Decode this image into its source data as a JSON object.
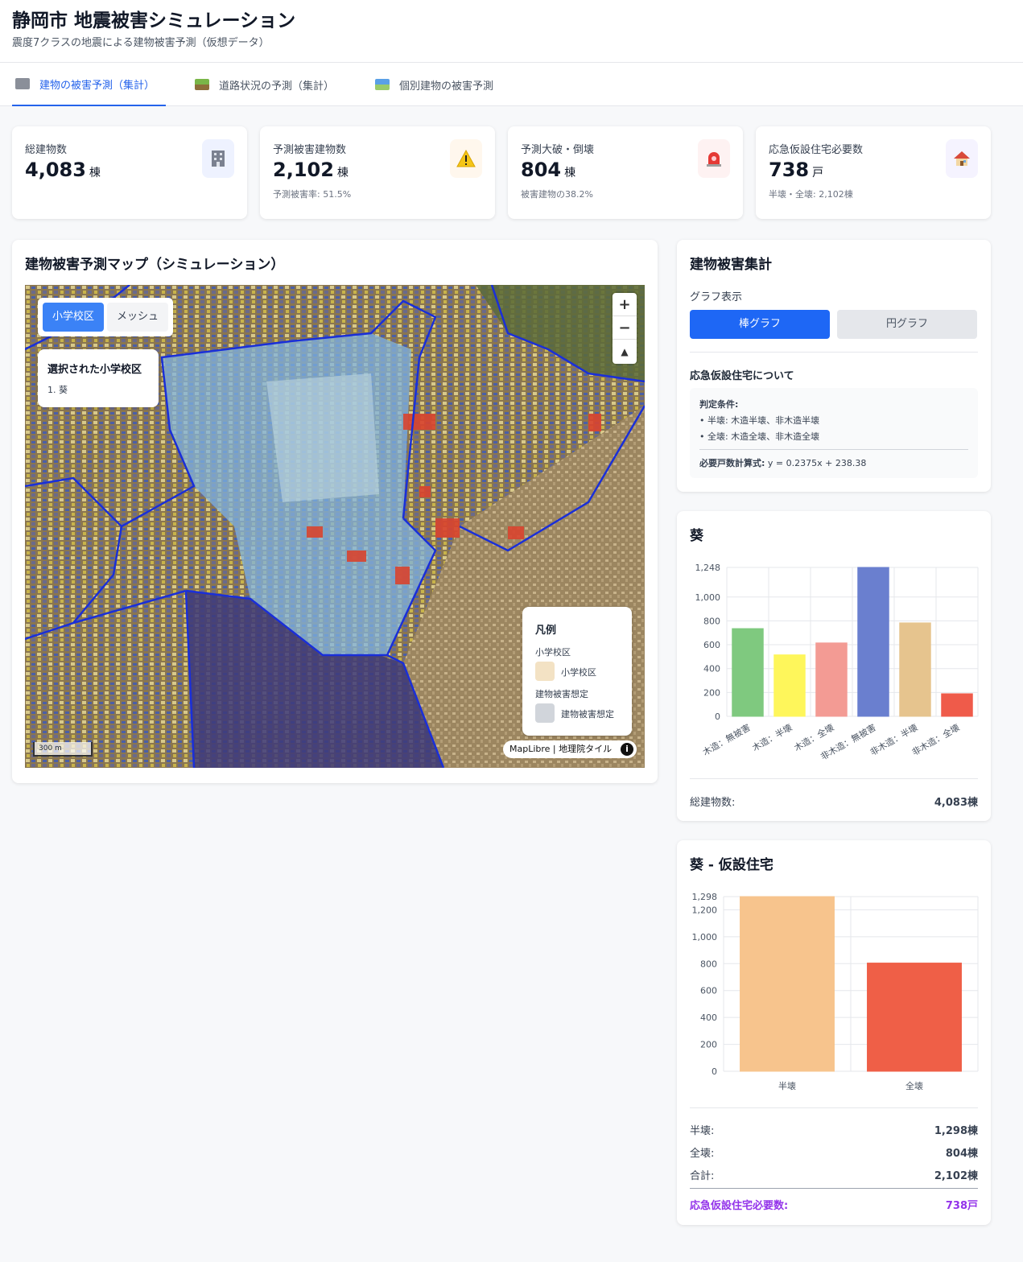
{
  "header": {
    "title": "静岡市 地震被害シミュレーション",
    "subtitle": "震度7クラスの地震による建物被害予測（仮想データ）"
  },
  "tabs": [
    {
      "label": "建物の被害予測（集計）",
      "icon": "building-icon",
      "active": true
    },
    {
      "label": "道路状況の予測（集計）",
      "icon": "road-icon",
      "active": false
    },
    {
      "label": "個別建物の被害予測",
      "icon": "map-icon",
      "active": false
    }
  ],
  "stats": [
    {
      "label": "総建物数",
      "value": "4,083",
      "unit": "棟",
      "sub": "",
      "icon": "building-icon",
      "icon_bg": "#eef2ff"
    },
    {
      "label": "予測被害建物数",
      "value": "2,102",
      "unit": "棟",
      "sub": "予測被害率: 51.5%",
      "icon": "warning-icon",
      "icon_bg": "#fff7ed"
    },
    {
      "label": "予測大破・倒壊",
      "value": "804",
      "unit": "棟",
      "sub": "被害建物の38.2%",
      "icon": "siren-icon",
      "icon_bg": "#fef2f2"
    },
    {
      "label": "応急仮設住宅必要数",
      "value": "738",
      "unit": "戸",
      "sub": "半壊・全壊: 2,102棟",
      "icon": "house-icon",
      "icon_bg": "#f5f3ff"
    }
  ],
  "map_card": {
    "title": "建物被害予測マップ（シミュレーション）",
    "toggle": [
      "小学校区",
      "メッシュ"
    ],
    "selected_title": "選択された小学校区",
    "selected_value": "1. 葵",
    "legend": {
      "title": "凡例",
      "section1": "小学校区",
      "item1": "小学校区",
      "item1_color": "#f3e2c4",
      "section2": "建物被害想定",
      "item2": "建物被害想定",
      "item2_color": "#d1d5db"
    },
    "scale": "300 m",
    "attribution": "MapLibre | 地理院タイル",
    "zoom_in": "+",
    "zoom_out": "−",
    "compass": "▲"
  },
  "summary_card": {
    "title": "建物被害集計",
    "graph_label": "グラフ表示",
    "bar_button": "棒グラフ",
    "pie_button": "円グラフ",
    "about_title": "応急仮設住宅について",
    "criteria_title": "判定条件:",
    "criteria_1": "• 半壊: 木造半壊、非木造半壊",
    "criteria_2": "• 全壊: 木造全壊、非木造全壊",
    "formula_label": "必要戸数計算式:",
    "formula": " y = 0.2375x + 238.38"
  },
  "damage_card": {
    "title": "葵",
    "total_label": "総建物数:",
    "total_value": "4,083棟"
  },
  "housing_card": {
    "title": "葵 - 仮設住宅",
    "rows": [
      {
        "label": "半壊:",
        "value": "1,298棟"
      },
      {
        "label": "全壊:",
        "value": "804棟"
      },
      {
        "label": "合計:",
        "value": "2,102棟"
      }
    ],
    "need_label": "応急仮設住宅必要数:",
    "need_value": "738戸"
  },
  "chart_data": [
    {
      "type": "bar",
      "title": "葵",
      "categories": [
        "木造：無被害",
        "木造：半壊",
        "木造：全壊",
        "非木造：無被害",
        "非木造：半壊",
        "非木造：全壊"
      ],
      "values": [
        735,
        515,
        615,
        1248,
        783,
        189
      ],
      "colors": [
        "#7fc97f",
        "#fef65b",
        "#f39b94",
        "#6a7fcf",
        "#e6c48e",
        "#ef5b4a"
      ],
      "yticks": [
        "0",
        "200",
        "400",
        "600",
        "800",
        "1,000",
        "1,248"
      ],
      "ylim": [
        0,
        1248
      ],
      "grid": true
    },
    {
      "type": "bar",
      "title": "葵 - 仮設住宅",
      "categories": [
        "半壊",
        "全壊"
      ],
      "values": [
        1298,
        804
      ],
      "colors": [
        "#f7c48d",
        "#ef5f47"
      ],
      "yticks": [
        "0",
        "200",
        "400",
        "600",
        "800",
        "1,000",
        "1,200",
        "1,298"
      ],
      "ylim": [
        0,
        1298
      ],
      "grid": true
    }
  ]
}
